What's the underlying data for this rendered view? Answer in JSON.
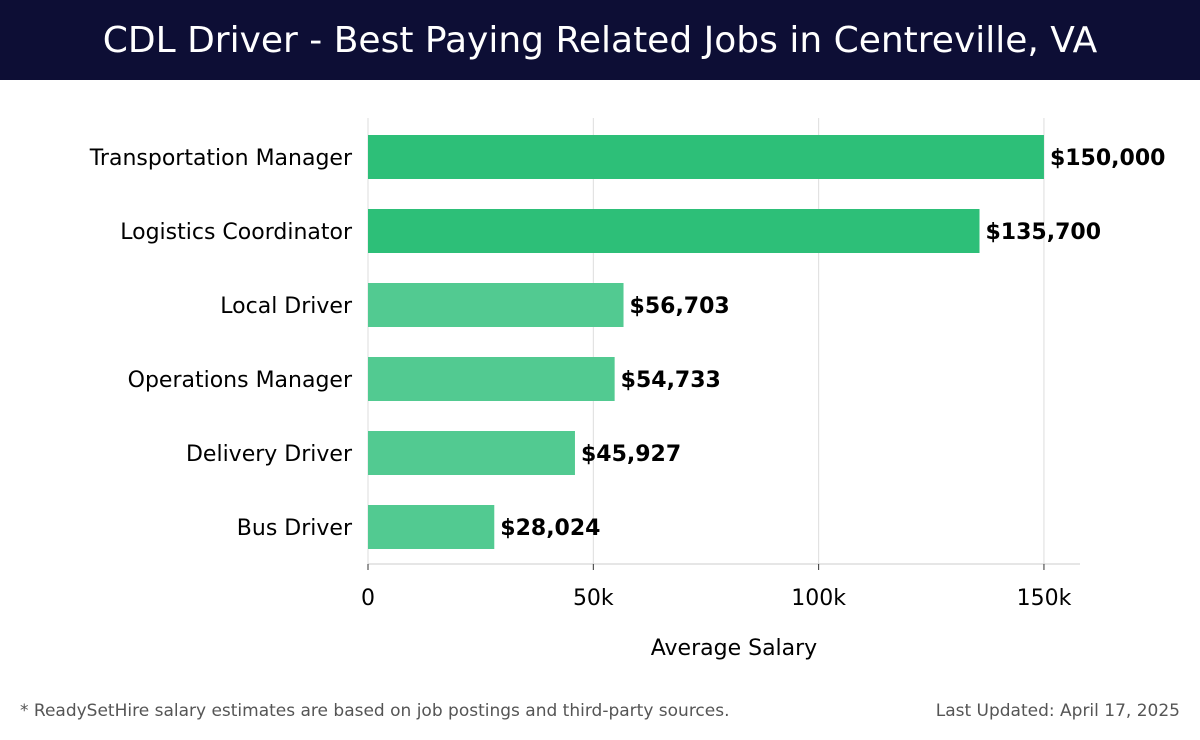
{
  "header": {
    "title": "CDL Driver - Best Paying Related Jobs in Centreville, VA"
  },
  "chart_data": {
    "type": "bar",
    "orientation": "horizontal",
    "categories": [
      "Transportation Manager",
      "Logistics Coordinator",
      "Local Driver",
      "Operations Manager",
      "Delivery Driver",
      "Bus Driver"
    ],
    "values": [
      150000,
      135700,
      56703,
      54733,
      45927,
      28024
    ],
    "value_labels": [
      "$150,000",
      "$135,700",
      "$56,703",
      "$54,733",
      "$45,927",
      "$28,024"
    ],
    "xlabel": "Average Salary",
    "ylabel": "",
    "xlim": [
      0,
      158000
    ],
    "x_ticks": [
      0,
      50000,
      100000,
      150000
    ],
    "x_tick_labels": [
      "0",
      "50k",
      "100k",
      "150k"
    ],
    "grid": "vertical",
    "colors": {
      "highlight": "#2dbf78",
      "bar": "#52ca91",
      "grid": "#dddddd",
      "text": "#000000"
    },
    "highlight_count": 2
  },
  "footer": {
    "note": "* ReadySetHire salary estimates are based on job postings and third-party sources.",
    "updated": "Last Updated: April 17, 2025"
  }
}
